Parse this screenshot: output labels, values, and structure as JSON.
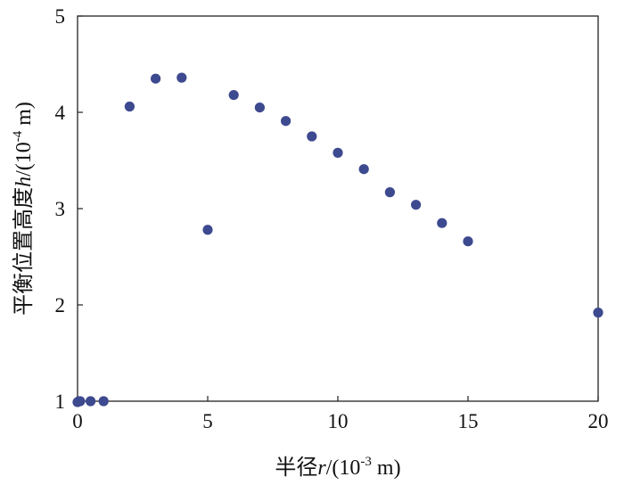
{
  "chart_data": {
    "type": "scatter",
    "title": "",
    "xlabel": {
      "prefix": "半径",
      "var": "r",
      "unit_open": "/(10",
      "unit_exp": "-3",
      "unit_close": " m)"
    },
    "ylabel": {
      "prefix": "平衡位置高度",
      "var": "h",
      "unit_open": "/(10",
      "unit_exp": "-4",
      "unit_close": " m)"
    },
    "xlim": [
      0,
      20
    ],
    "ylim": [
      1,
      5
    ],
    "xticks": [
      "0",
      "5",
      "10",
      "15",
      "20"
    ],
    "yticks": [
      "1",
      "2",
      "3",
      "4",
      "5"
    ],
    "grid": false,
    "legend": "none",
    "marker_color": "#3d4a8f",
    "points": [
      {
        "x": 0.0,
        "y": 0.99
      },
      {
        "x": 0.05,
        "y": 1.0
      },
      {
        "x": 0.1,
        "y": 1.0
      },
      {
        "x": 0.5,
        "y": 1.0
      },
      {
        "x": 1.0,
        "y": 1.0
      },
      {
        "x": 2.0,
        "y": 4.06
      },
      {
        "x": 3.0,
        "y": 4.35
      },
      {
        "x": 4.0,
        "y": 4.36
      },
      {
        "x": 5.0,
        "y": 2.78
      },
      {
        "x": 6.0,
        "y": 4.18
      },
      {
        "x": 7.0,
        "y": 4.05
      },
      {
        "x": 8.0,
        "y": 3.91
      },
      {
        "x": 9.0,
        "y": 3.75
      },
      {
        "x": 10.0,
        "y": 3.58
      },
      {
        "x": 11.0,
        "y": 3.41
      },
      {
        "x": 12.0,
        "y": 3.17
      },
      {
        "x": 13.0,
        "y": 3.04
      },
      {
        "x": 14.0,
        "y": 2.85
      },
      {
        "x": 15.0,
        "y": 2.66
      },
      {
        "x": 20.0,
        "y": 1.92
      }
    ]
  }
}
